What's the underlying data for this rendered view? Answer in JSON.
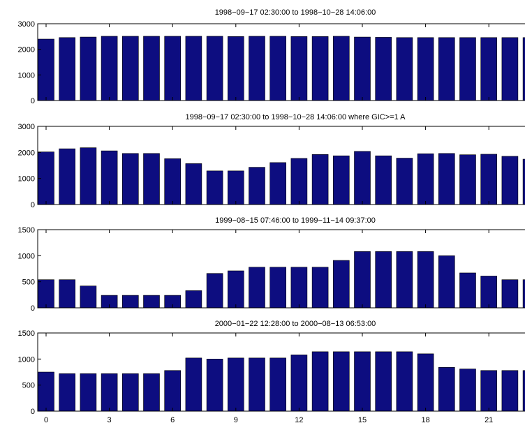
{
  "chart_data": [
    {
      "type": "bar",
      "title": "1998−09−17 02:30:00 to 1998−10−28 14:06:00",
      "x": [
        0,
        1,
        2,
        3,
        4,
        5,
        6,
        7,
        8,
        9,
        10,
        11,
        12,
        13,
        14,
        15,
        16,
        17,
        18,
        19,
        20,
        21,
        22,
        23
      ],
      "values": [
        2400,
        2460,
        2480,
        2510,
        2510,
        2510,
        2510,
        2510,
        2510,
        2500,
        2510,
        2510,
        2500,
        2500,
        2510,
        2480,
        2470,
        2460,
        2460,
        2460,
        2460,
        2460,
        2460,
        2460
      ],
      "ylim": [
        0,
        3000
      ],
      "yticks": [
        0,
        1000,
        2000,
        3000
      ]
    },
    {
      "type": "bar",
      "title": "1998−09−17 02:30:00 to 1998−10−28 14:06:00 where GIC>=1 A",
      "x": [
        0,
        1,
        2,
        3,
        4,
        5,
        6,
        7,
        8,
        9,
        10,
        11,
        12,
        13,
        14,
        15,
        16,
        17,
        18,
        19,
        20,
        21,
        22,
        23
      ],
      "values": [
        2020,
        2140,
        2180,
        2060,
        1960,
        1960,
        1760,
        1570,
        1290,
        1290,
        1430,
        1610,
        1770,
        1920,
        1870,
        2040,
        1870,
        1780,
        1950,
        1960,
        1910,
        1930,
        1850,
        1740
      ],
      "ylim": [
        0,
        3000
      ],
      "yticks": [
        0,
        1000,
        2000,
        3000
      ]
    },
    {
      "type": "bar",
      "title": "1999−08−15 07:46:00 to 1999−11−14 09:37:00",
      "x": [
        0,
        1,
        2,
        3,
        4,
        5,
        6,
        7,
        8,
        9,
        10,
        11,
        12,
        13,
        14,
        15,
        16,
        17,
        18,
        19,
        20,
        21,
        22,
        23
      ],
      "values": [
        540,
        540,
        420,
        240,
        240,
        240,
        240,
        330,
        660,
        710,
        780,
        780,
        780,
        780,
        910,
        1080,
        1080,
        1080,
        1080,
        1000,
        670,
        610,
        540,
        540
      ],
      "ylim": [
        0,
        1500
      ],
      "yticks": [
        0,
        500,
        1000,
        1500
      ]
    },
    {
      "type": "bar",
      "title": "2000−01−22 12:28:00 to 2000−08−13 06:53:00",
      "x": [
        0,
        1,
        2,
        3,
        4,
        5,
        6,
        7,
        8,
        9,
        10,
        11,
        12,
        13,
        14,
        15,
        16,
        17,
        18,
        19,
        20,
        21,
        22,
        23
      ],
      "values": [
        750,
        720,
        720,
        720,
        720,
        720,
        780,
        1020,
        1000,
        1020,
        1020,
        1020,
        1080,
        1140,
        1140,
        1140,
        1140,
        1140,
        1100,
        840,
        810,
        780,
        780,
        780
      ],
      "ylim": [
        0,
        1500
      ],
      "yticks": [
        0,
        500,
        1000,
        1500
      ],
      "xticks": [
        0,
        3,
        6,
        9,
        12,
        15,
        18,
        21
      ]
    }
  ]
}
